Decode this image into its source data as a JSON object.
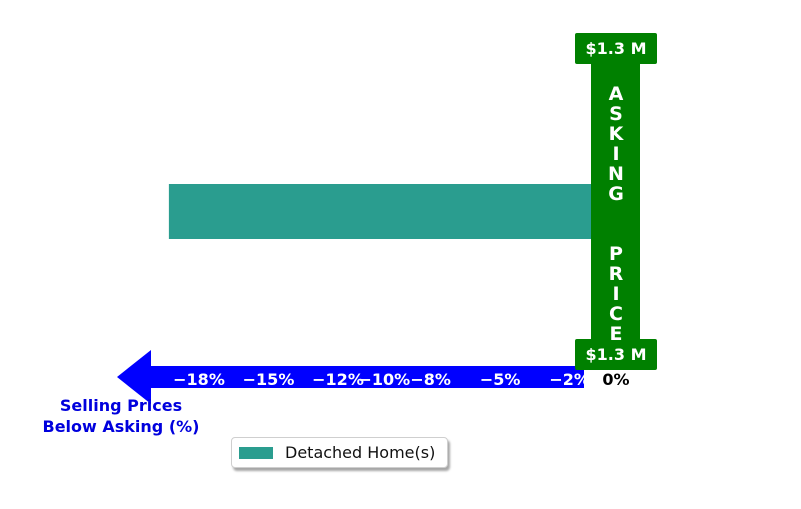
{
  "chart_data": {
    "type": "bar",
    "orientation": "horizontal",
    "series": [
      {
        "name": "Detached Home(s)",
        "values": [
          -19.3
        ],
        "color": "#2a9d8f"
      }
    ],
    "xlabel": "Selling Prices\nBelow Asking (%)",
    "xticks": [
      {
        "value": -18,
        "label": "−18%"
      },
      {
        "value": -15,
        "label": "−15%"
      },
      {
        "value": -12,
        "label": "−12%"
      },
      {
        "value": -10,
        "label": "−10%"
      },
      {
        "value": -8,
        "label": "−8%"
      },
      {
        "value": -5,
        "label": "−5%"
      },
      {
        "value": -2,
        "label": "−2%"
      },
      {
        "value": 0,
        "label": "0%"
      }
    ],
    "reference_label": "ASKING  PRICE",
    "reference_price_top": "$1.3 M",
    "reference_price_bottom": "$1.3 M",
    "legend": {
      "placement": "bottom",
      "entries": [
        "Detached Home(s)"
      ]
    },
    "grid": false
  },
  "colors": {
    "bar": "#2a9d8f",
    "reference": "#008000",
    "axis_arrow": "#0000ff",
    "axis_label": "#0000dd"
  }
}
